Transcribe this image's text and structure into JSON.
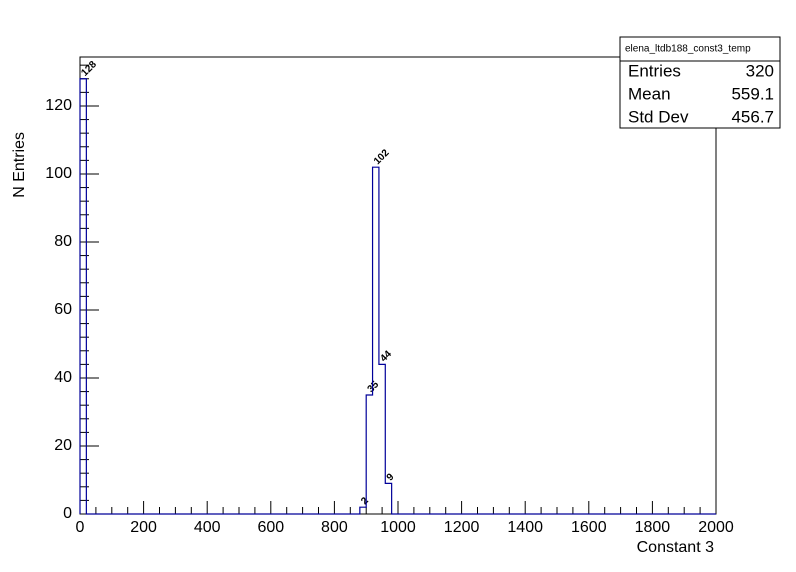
{
  "chart_data": {
    "type": "histogram",
    "x_label": "Constant 3",
    "y_label": "N Entries",
    "bins": [
      0,
      20,
      40,
      60,
      80,
      100,
      120,
      140,
      160,
      180,
      200,
      220,
      240,
      260,
      280,
      300,
      320,
      340,
      360,
      380,
      400,
      420,
      440,
      460,
      480,
      500,
      520,
      540,
      560,
      580,
      600,
      620,
      640,
      660,
      680,
      700,
      720,
      740,
      760,
      780,
      800,
      820,
      840,
      860,
      880,
      900,
      920,
      940,
      960,
      980,
      1000,
      1020,
      1040,
      1060,
      1080,
      1100,
      1120,
      1140,
      1160,
      1180,
      1200,
      1220,
      1240,
      1260,
      1280,
      1300,
      1320,
      1340,
      1360,
      1380,
      1400,
      1420,
      1440,
      1460,
      1480,
      1500,
      1520,
      1540,
      1560,
      1580,
      1600,
      1620,
      1640,
      1660,
      1680,
      1700,
      1720,
      1740,
      1760,
      1780,
      1800,
      1820,
      1840,
      1860,
      1880,
      1900,
      1920,
      1940,
      1960,
      1980,
      2000
    ],
    "values": [
      128,
      0,
      0,
      0,
      0,
      0,
      0,
      0,
      0,
      0,
      0,
      0,
      0,
      0,
      0,
      0,
      0,
      0,
      0,
      0,
      0,
      0,
      0,
      0,
      0,
      0,
      0,
      0,
      0,
      0,
      0,
      0,
      0,
      0,
      0,
      0,
      0,
      0,
      0,
      0,
      0,
      0,
      0,
      0,
      2,
      35,
      102,
      44,
      9,
      0,
      0,
      0,
      0,
      0,
      0,
      0,
      0,
      0,
      0,
      0,
      0,
      0,
      0,
      0,
      0,
      0,
      0,
      0,
      0,
      0,
      0,
      0,
      0,
      0,
      0,
      0,
      0,
      0,
      0,
      0,
      0,
      0,
      0,
      0,
      0,
      0,
      0,
      0,
      0,
      0,
      0,
      0,
      0,
      0,
      0,
      0,
      0,
      0,
      0,
      0
    ],
    "color": "#000099",
    "xlim": [
      0,
      2000
    ],
    "xticks": [
      0,
      200,
      400,
      600,
      800,
      1000,
      1200,
      1400,
      1600,
      1800,
      2000
    ],
    "ylim": [
      0,
      134.4
    ],
    "yticks": [
      0,
      20,
      40,
      60,
      80,
      100,
      120
    ],
    "stats": {
      "title": "elena_ltdb188_const3_temp",
      "rows": [
        [
          "Entries",
          320
        ],
        [
          "Mean",
          559.1
        ],
        [
          "Std Dev",
          456.7
        ]
      ]
    }
  }
}
